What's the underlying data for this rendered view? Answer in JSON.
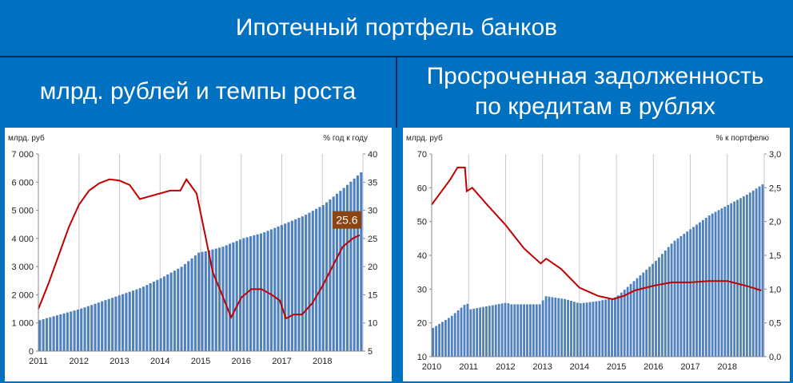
{
  "header": {
    "title": "Ипотечный портфель банков",
    "left_subtitle": "млрд. рублей и темпы роста",
    "right_subtitle_line1": "Просроченная задолженность",
    "right_subtitle_line2": "по кредитам в рублях"
  },
  "colors": {
    "background": "#0070c0",
    "bars": "#4f81bd",
    "line": "#c00000",
    "badge": "#8b4513"
  },
  "chart_data": [
    {
      "type": "bar",
      "left_axis_label": "млрд. руб",
      "right_axis_label": "% год к году",
      "ylim_left": [
        0,
        7000
      ],
      "yticks_left": [
        "0",
        "1 000",
        "2 000",
        "3 000",
        "4 000",
        "5 000",
        "6 000",
        "7 000"
      ],
      "ylim_right": [
        5,
        40
      ],
      "yticks_right": [
        "5",
        "10",
        "15",
        "20",
        "25",
        "30",
        "35",
        "40"
      ],
      "xlim": [
        2011,
        2019
      ],
      "xticks": [
        "2011",
        "2012",
        "2013",
        "2014",
        "2015",
        "2016",
        "2017",
        "2018"
      ],
      "grid": "vertical",
      "annotation": "25.6",
      "series": [
        {
          "type": "bar",
          "axis": "left",
          "points": [
            [
              2011.0,
              1100
            ],
            [
              2011.5,
              1300
            ],
            [
              2012.0,
              1500
            ],
            [
              2012.5,
              1750
            ],
            [
              2013.0,
              2000
            ],
            [
              2013.5,
              2250
            ],
            [
              2014.0,
              2600
            ],
            [
              2014.5,
              3000
            ],
            [
              2014.92,
              3500
            ],
            [
              2015.1,
              3550
            ],
            [
              2015.5,
              3700
            ],
            [
              2016.0,
              4000
            ],
            [
              2016.5,
              4200
            ],
            [
              2017.0,
              4500
            ],
            [
              2017.5,
              4800
            ],
            [
              2018.0,
              5200
            ],
            [
              2018.5,
              5800
            ],
            [
              2018.92,
              6350
            ]
          ]
        },
        {
          "type": "line",
          "axis": "right",
          "points": [
            [
              2011.0,
              12.5
            ],
            [
              2011.25,
              17
            ],
            [
              2011.5,
              22
            ],
            [
              2011.75,
              27
            ],
            [
              2012.0,
              31
            ],
            [
              2012.25,
              33.5
            ],
            [
              2012.5,
              34.8
            ],
            [
              2012.75,
              35.5
            ],
            [
              2013.0,
              35.3
            ],
            [
              2013.25,
              34.5
            ],
            [
              2013.5,
              32
            ],
            [
              2013.75,
              32.5
            ],
            [
              2014.0,
              33
            ],
            [
              2014.25,
              33.5
            ],
            [
              2014.5,
              33.5
            ],
            [
              2014.65,
              35.5
            ],
            [
              2014.9,
              33
            ],
            [
              2015.1,
              26
            ],
            [
              2015.3,
              19
            ],
            [
              2015.5,
              15.5
            ],
            [
              2015.75,
              11
            ],
            [
              2016.0,
              14.5
            ],
            [
              2016.25,
              16
            ],
            [
              2016.5,
              16
            ],
            [
              2016.75,
              15
            ],
            [
              2016.95,
              14
            ],
            [
              2017.1,
              10.8
            ],
            [
              2017.3,
              11.5
            ],
            [
              2017.5,
              11.5
            ],
            [
              2017.75,
              13.5
            ],
            [
              2018.0,
              16.5
            ],
            [
              2018.25,
              20
            ],
            [
              2018.5,
              23.5
            ],
            [
              2018.75,
              25
            ],
            [
              2018.92,
              25.6
            ]
          ]
        }
      ]
    },
    {
      "type": "bar",
      "left_axis_label": "млрд. руб",
      "right_axis_label": "% к портфелю",
      "ylim_left": [
        10,
        70
      ],
      "yticks_left": [
        "10",
        "20",
        "30",
        "40",
        "50",
        "60",
        "70"
      ],
      "ylim_right": [
        0,
        3
      ],
      "yticks_right": [
        "0,0",
        "0,5",
        "1,0",
        "1,5",
        "2,0",
        "2,5",
        "3,0"
      ],
      "xlim": [
        2010,
        2019
      ],
      "xticks": [
        "2010",
        "2011",
        "2012",
        "2013",
        "2014",
        "2015",
        "2016",
        "2017",
        "2018"
      ],
      "grid": "vertical",
      "series": [
        {
          "type": "bar",
          "axis": "left",
          "points": [
            [
              2010.0,
              18.5
            ],
            [
              2010.5,
              22
            ],
            [
              2010.92,
              26
            ],
            [
              2011.0,
              24
            ],
            [
              2011.5,
              25
            ],
            [
              2012.0,
              26
            ],
            [
              2012.1,
              25.5
            ],
            [
              2012.5,
              25.5
            ],
            [
              2012.95,
              25.5
            ],
            [
              2013.0,
              28
            ],
            [
              2013.3,
              27.5
            ],
            [
              2013.6,
              27
            ],
            [
              2013.9,
              26
            ],
            [
              2014.0,
              25.8
            ],
            [
              2014.5,
              26.5
            ],
            [
              2014.92,
              27.5
            ],
            [
              2015.0,
              28
            ],
            [
              2015.5,
              33
            ],
            [
              2016.0,
              38
            ],
            [
              2016.5,
              44
            ],
            [
              2017.0,
              48
            ],
            [
              2017.5,
              52
            ],
            [
              2018.0,
              55
            ],
            [
              2018.5,
              58
            ],
            [
              2018.92,
              61
            ]
          ]
        },
        {
          "type": "line",
          "axis": "right",
          "points": [
            [
              2010.0,
              2.25
            ],
            [
              2010.5,
              2.62
            ],
            [
              2010.7,
              2.8
            ],
            [
              2010.9,
              2.8
            ],
            [
              2010.95,
              2.45
            ],
            [
              2011.1,
              2.5
            ],
            [
              2011.5,
              2.25
            ],
            [
              2012.0,
              1.95
            ],
            [
              2012.5,
              1.6
            ],
            [
              2012.95,
              1.38
            ],
            [
              2013.1,
              1.45
            ],
            [
              2013.5,
              1.3
            ],
            [
              2014.0,
              1.02
            ],
            [
              2014.5,
              0.9
            ],
            [
              2014.9,
              0.85
            ],
            [
              2015.2,
              0.9
            ],
            [
              2015.5,
              0.98
            ],
            [
              2016.0,
              1.05
            ],
            [
              2016.5,
              1.1
            ],
            [
              2017.0,
              1.1
            ],
            [
              2017.5,
              1.12
            ],
            [
              2018.0,
              1.12
            ],
            [
              2018.5,
              1.05
            ],
            [
              2018.92,
              0.98
            ]
          ]
        }
      ]
    }
  ]
}
